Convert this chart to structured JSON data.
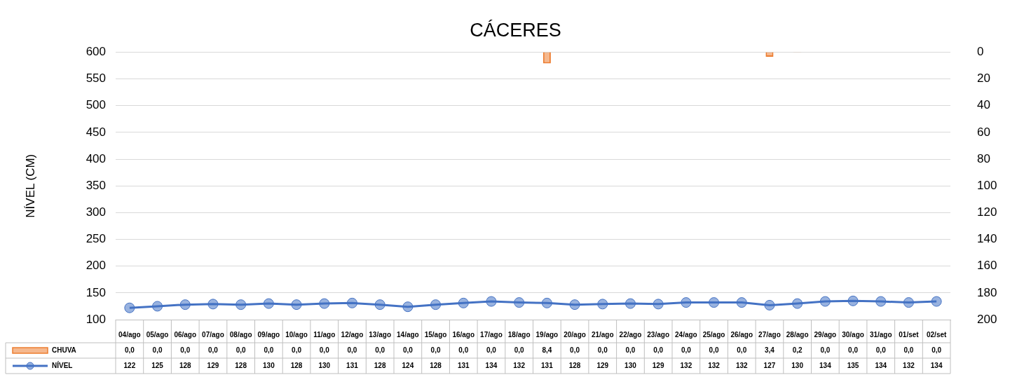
{
  "chart_data": {
    "type": "line",
    "title": "CÁCERES",
    "ylabel": "NÍVEL (CM)",
    "categories": [
      "04/ago",
      "05/ago",
      "06/ago",
      "07/ago",
      "08/ago",
      "09/ago",
      "10/ago",
      "11/ago",
      "12/ago",
      "13/ago",
      "14/ago",
      "15/ago",
      "16/ago",
      "17/ago",
      "18/ago",
      "19/ago",
      "20/ago",
      "21/ago",
      "22/ago",
      "23/ago",
      "24/ago",
      "25/ago",
      "26/ago",
      "27/ago",
      "28/ago",
      "29/ago",
      "30/ago",
      "31/ago",
      "01/set",
      "02/set"
    ],
    "series": [
      {
        "name": "CHUVA",
        "type": "bar",
        "axis": "y2",
        "color": "#ed7d31",
        "values": [
          0,
          0,
          0,
          0,
          0,
          0,
          0,
          0,
          0,
          0,
          0,
          0,
          0,
          0,
          0,
          8.4,
          0,
          0,
          0,
          0,
          0,
          0,
          0,
          3.4,
          0.2,
          0,
          0,
          0,
          0,
          0
        ],
        "value_labels": [
          "0,0",
          "0,0",
          "0,0",
          "0,0",
          "0,0",
          "0,0",
          "0,0",
          "0,0",
          "0,0",
          "0,0",
          "0,0",
          "0,0",
          "0,0",
          "0,0",
          "0,0",
          "8,4",
          "0,0",
          "0,0",
          "0,0",
          "0,0",
          "0,0",
          "0,0",
          "0,0",
          "3,4",
          "0,2",
          "0,0",
          "0,0",
          "0,0",
          "0,0",
          "0,0"
        ]
      },
      {
        "name": "NÍVEL",
        "color": "#4472c4",
        "values": [
          122,
          125,
          128,
          129,
          128,
          130,
          128,
          130,
          131,
          128,
          124,
          128,
          131,
          134,
          132,
          131,
          128,
          129,
          130,
          129,
          132,
          132,
          132,
          127,
          130,
          134,
          135,
          134,
          132,
          134
        ],
        "value_labels": [
          "122",
          "125",
          "128",
          "129",
          "128",
          "130",
          "128",
          "130",
          "131",
          "128",
          "124",
          "128",
          "131",
          "134",
          "132",
          "131",
          "128",
          "129",
          "130",
          "129",
          "132",
          "132",
          "132",
          "127",
          "130",
          "134",
          "135",
          "134",
          "132",
          "134"
        ]
      }
    ],
    "ylim": [
      100,
      600
    ],
    "yticks": [
      100,
      150,
      200,
      250,
      300,
      350,
      400,
      450,
      500,
      550,
      600
    ],
    "y2lim": [
      200,
      0
    ],
    "y2ticks": [
      0,
      20,
      40,
      60,
      80,
      100,
      120,
      140,
      160,
      180,
      200
    ],
    "grid": "y",
    "legend": "bottom",
    "marker": "circle",
    "line_style": "solid"
  }
}
